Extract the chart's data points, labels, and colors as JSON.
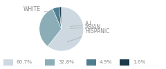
{
  "labels": [
    "WHITE",
    "HISPANIC",
    "ASIAN",
    "A.I."
  ],
  "values": [
    60.7,
    32.8,
    4.9,
    1.6
  ],
  "colors": [
    "#cdd8e0",
    "#8aadb8",
    "#4d7d8e",
    "#1a3a4a"
  ],
  "legend_labels": [
    "60.7%",
    "32.8%",
    "4.9%",
    "1.6%"
  ],
  "background_color": "#ffffff",
  "text_color": "#888888",
  "font_size": 5.5,
  "legend_font_size": 5.2
}
